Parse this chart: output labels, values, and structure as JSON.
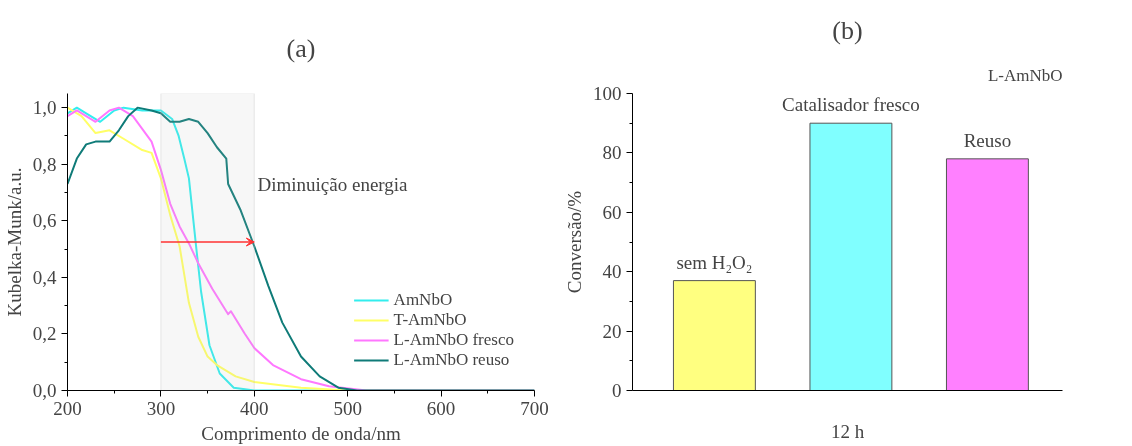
{
  "chart_data": [
    {
      "type": "line",
      "title": "(a)",
      "xlabel": "Comprimento de onda/nm",
      "ylabel": "Kubelka-Munk/a.u.",
      "xlim": [
        200,
        700
      ],
      "ylim": [
        0,
        1.05
      ],
      "xticks": [
        200,
        300,
        400,
        500,
        600,
        700
      ],
      "yticks": [
        {
          "value": 0,
          "label": "0,0"
        },
        {
          "value": 0.2,
          "label": "0,2"
        },
        {
          "value": 0.4,
          "label": "0,4"
        },
        {
          "value": 0.6,
          "label": "0,6"
        },
        {
          "value": 0.8,
          "label": "0,8"
        },
        {
          "value": 1.0,
          "label": "1,0"
        }
      ],
      "grid": false,
      "legend": "bottom right",
      "bands": [
        {
          "axis": "x",
          "from": 300,
          "to": 400,
          "color": "#c0c0c0"
        }
      ],
      "annotations": [
        "Diminuição energia"
      ],
      "series": [
        {
          "name": "AmNbO",
          "color": "#33eeee",
          "x": [
            200,
            210,
            220,
            235,
            250,
            260,
            280,
            300,
            312,
            319,
            325,
            330,
            338,
            343,
            352,
            363,
            378,
            400,
            500,
            700
          ],
          "values": [
            0.98,
            1.0,
            0.98,
            0.95,
            0.99,
            1.0,
            0.99,
            0.99,
            0.96,
            0.9,
            0.82,
            0.75,
            0.5,
            0.35,
            0.16,
            0.06,
            0.01,
            0.0,
            0.0,
            0.0
          ]
        },
        {
          "name": "T-AmNbO",
          "color": "#ffff66",
          "x": [
            200,
            215,
            230,
            245,
            260,
            280,
            290,
            300,
            310,
            320,
            330,
            340,
            350,
            360,
            380,
            400,
            450,
            500,
            700
          ],
          "values": [
            1.0,
            0.97,
            0.91,
            0.92,
            0.89,
            0.85,
            0.84,
            0.75,
            0.62,
            0.51,
            0.31,
            0.19,
            0.12,
            0.09,
            0.05,
            0.03,
            0.01,
            0.0,
            0.0
          ]
        },
        {
          "name": "L-AmNbO fresco",
          "color": "#ff77ff",
          "x": [
            200,
            210,
            230,
            245,
            255,
            270,
            290,
            300,
            310,
            320,
            330,
            340,
            355,
            370,
            372,
            375,
            390,
            400,
            420,
            450,
            480,
            520,
            700
          ],
          "values": [
            0.97,
            0.99,
            0.95,
            0.99,
            1.0,
            0.97,
            0.88,
            0.78,
            0.66,
            0.58,
            0.52,
            0.45,
            0.36,
            0.28,
            0.27,
            0.28,
            0.2,
            0.15,
            0.09,
            0.04,
            0.015,
            0.0,
            0.0
          ]
        },
        {
          "name": "L-AmNbO reuso",
          "color": "#0f7b78",
          "x": [
            200,
            210,
            220,
            230,
            245,
            255,
            265,
            275,
            290,
            300,
            310,
            320,
            330,
            340,
            350,
            360,
            370,
            372,
            385,
            400,
            415,
            430,
            450,
            470,
            490,
            510,
            700
          ],
          "values": [
            0.73,
            0.82,
            0.87,
            0.88,
            0.88,
            0.92,
            0.97,
            1.0,
            0.99,
            0.98,
            0.95,
            0.95,
            0.96,
            0.95,
            0.91,
            0.86,
            0.82,
            0.73,
            0.64,
            0.51,
            0.37,
            0.24,
            0.12,
            0.05,
            0.01,
            0.0,
            0.0
          ]
        }
      ]
    },
    {
      "type": "bar",
      "title": "(b)",
      "subtitle": "L-AmNbO",
      "xlabel": "12 h",
      "ylabel": "Conversão/%",
      "categories": [
        "sem H₂O₂",
        "Catalisador fresco",
        "Reuso"
      ],
      "values": [
        37,
        90,
        78
      ],
      "colors": [
        "#ffff80",
        "#80ffff",
        "#ff80ff"
      ],
      "ylim": [
        0,
        100
      ],
      "yticks": [
        0,
        20,
        40,
        60,
        80,
        100
      ],
      "grid": false,
      "tick_labels": "y"
    }
  ]
}
